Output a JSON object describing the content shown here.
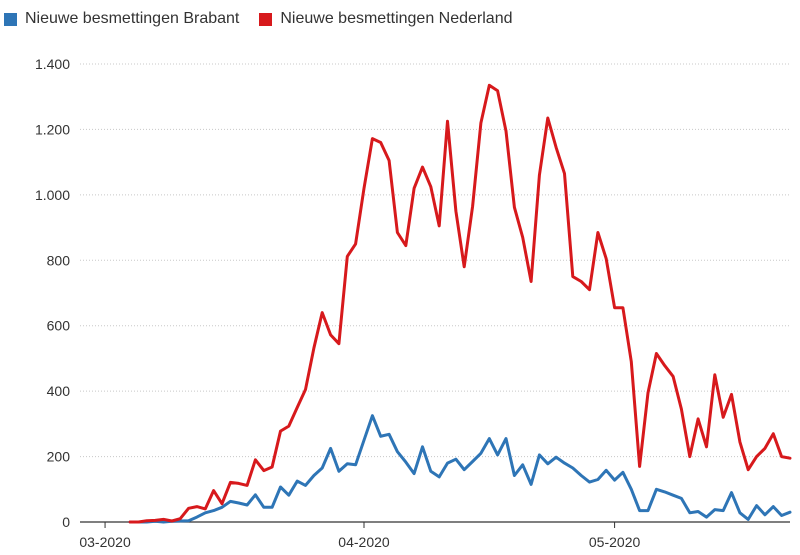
{
  "chart_data": {
    "type": "line",
    "title": "",
    "xlabel": "",
    "ylabel": "",
    "ylim": [
      0,
      1400
    ],
    "yticks": [
      0,
      200,
      400,
      600,
      800,
      1000,
      1200,
      1400
    ],
    "ytick_labels": [
      "0",
      "200",
      "400",
      "600",
      "800",
      "1.000",
      "1.200",
      "1.400"
    ],
    "x_start": "2020-02-27",
    "x_end": "2020-05-22",
    "xticks": [
      {
        "date": "2020-03-01",
        "label": "03-2020"
      },
      {
        "date": "2020-04-01",
        "label": "04-2020"
      },
      {
        "date": "2020-05-01",
        "label": "05-2020"
      }
    ],
    "grid": true,
    "legend_position": "top-left",
    "series": [
      {
        "name": "Nieuwe besmettingen Brabant",
        "color": "#2e75b6",
        "start": "2020-03-04",
        "values": [
          0,
          0,
          0,
          2,
          0,
          2,
          3,
          4,
          15,
          28,
          35,
          45,
          63,
          58,
          52,
          83,
          45,
          45,
          107,
          82,
          125,
          112,
          142,
          165,
          225,
          155,
          178,
          175,
          250,
          325,
          262,
          268,
          215,
          183,
          148,
          230,
          155,
          138,
          180,
          192,
          160,
          185,
          210,
          255,
          205,
          255,
          142,
          175,
          115,
          205,
          178,
          198,
          180,
          165,
          142,
          122,
          130,
          158,
          128,
          152,
          100,
          35,
          35,
          100,
          92,
          82,
          72,
          28,
          32,
          15,
          38,
          35,
          90,
          28,
          8,
          50,
          22,
          47,
          20,
          30
        ]
      },
      {
        "name": "Nieuwe besmettingen Nederland",
        "color": "#d7191c",
        "start": "2020-03-04",
        "values": [
          0,
          0,
          4,
          5,
          8,
          3,
          10,
          42,
          47,
          40,
          96,
          56,
          121,
          118,
          112,
          190,
          157,
          168,
          278,
          293,
          350,
          405,
          532,
          640,
          572,
          545,
          812,
          850,
          1020,
          1172,
          1160,
          1105,
          885,
          845,
          1020,
          1085,
          1025,
          905,
          1225,
          950,
          780,
          965,
          1220,
          1335,
          1318,
          1195,
          962,
          870,
          735,
          1060,
          1235,
          1145,
          1065,
          750,
          735,
          710,
          885,
          805,
          655,
          655,
          490,
          170,
          395,
          515,
          478,
          445,
          345,
          200,
          315,
          230,
          450,
          320,
          390,
          245,
          160,
          200,
          225,
          270,
          200,
          195
        ]
      }
    ]
  }
}
